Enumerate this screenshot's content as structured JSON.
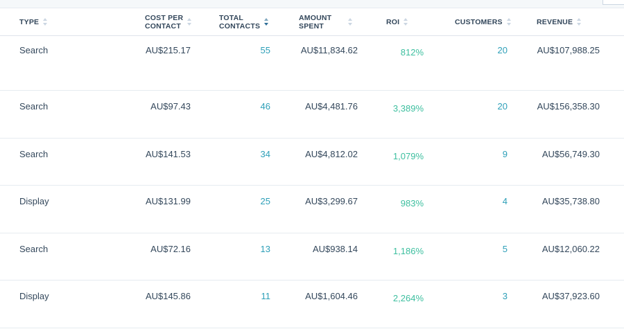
{
  "columns": {
    "type": "TYPE",
    "cost_per_contact": "COST PER\nCONTACT",
    "total_contacts": "TOTAL\nCONTACTS",
    "amount_spent": "AMOUNT\nSPENT",
    "roi": "ROI",
    "customers": "CUSTOMERS",
    "revenue": "REVENUE"
  },
  "sorted_column": "total_contacts",
  "colors": {
    "link": "#2d9fb8",
    "roi": "#3dbf9f",
    "text": "#33475b",
    "header_sort_icon": "#cbd6e2"
  },
  "rows": [
    {
      "type": "Search",
      "cost_per_contact": "AU$215.17",
      "total_contacts": "55",
      "amount_spent": "AU$11,834.62",
      "roi": "812%",
      "customers": "20",
      "revenue": "AU$107,988.25"
    },
    {
      "type": "Search",
      "cost_per_contact": "AU$97.43",
      "total_contacts": "46",
      "amount_spent": "AU$4,481.76",
      "roi": "3,389%",
      "customers": "20",
      "revenue": "AU$156,358.30"
    },
    {
      "type": "Search",
      "cost_per_contact": "AU$141.53",
      "total_contacts": "34",
      "amount_spent": "AU$4,812.02",
      "roi": "1,079%",
      "customers": "9",
      "revenue": "AU$56,749.30"
    },
    {
      "type": "Display",
      "cost_per_contact": "AU$131.99",
      "total_contacts": "25",
      "amount_spent": "AU$3,299.67",
      "roi": "983%",
      "customers": "4",
      "revenue": "AU$35,738.80"
    },
    {
      "type": "Search",
      "cost_per_contact": "AU$72.16",
      "total_contacts": "13",
      "amount_spent": "AU$938.14",
      "roi": "1,186%",
      "customers": "5",
      "revenue": "AU$12,060.22"
    },
    {
      "type": "Display",
      "cost_per_contact": "AU$145.86",
      "total_contacts": "11",
      "amount_spent": "AU$1,604.46",
      "roi": "2,264%",
      "customers": "3",
      "revenue": "AU$37,923.60"
    }
  ]
}
